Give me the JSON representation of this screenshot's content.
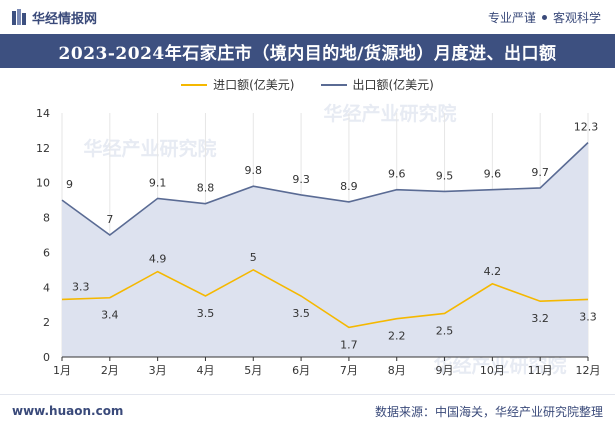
{
  "header": {
    "brand": "华经情报网",
    "tagline_left": "专业严谨",
    "tagline_right": "客观科学"
  },
  "chart_title": "2023-2024年石家庄市（境内目的地/货源地）月度进、出口额",
  "footer": {
    "url": "www.huaon.com",
    "source": "数据来源：中国海关，华经产业研究院整理"
  },
  "watermark": "华经产业研究院",
  "colors": {
    "import": "#f5b800",
    "export": "#5a6b94",
    "area": "#dde2ef",
    "title_bg": "#3d5080"
  },
  "chart_data": {
    "type": "line",
    "categories": [
      "1月",
      "2月",
      "3月",
      "4月",
      "5月",
      "6月",
      "7月",
      "8月",
      "9月",
      "10月",
      "11月",
      "12月"
    ],
    "series": [
      {
        "name": "进口额(亿美元)",
        "values": [
          3.3,
          3.4,
          4.9,
          3.5,
          5,
          3.5,
          1.7,
          2.2,
          2.5,
          4.2,
          3.2,
          3.3
        ]
      },
      {
        "name": "出口额(亿美元)",
        "values": [
          9,
          7,
          9.1,
          8.8,
          9.8,
          9.3,
          8.9,
          9.6,
          9.5,
          9.6,
          9.7,
          12.3
        ]
      }
    ],
    "y_ticks": [
      0,
      2,
      4,
      6,
      8,
      10,
      12,
      14
    ],
    "ylim": [
      0,
      14
    ],
    "legend_position": "top-center",
    "grid": "vertical"
  }
}
